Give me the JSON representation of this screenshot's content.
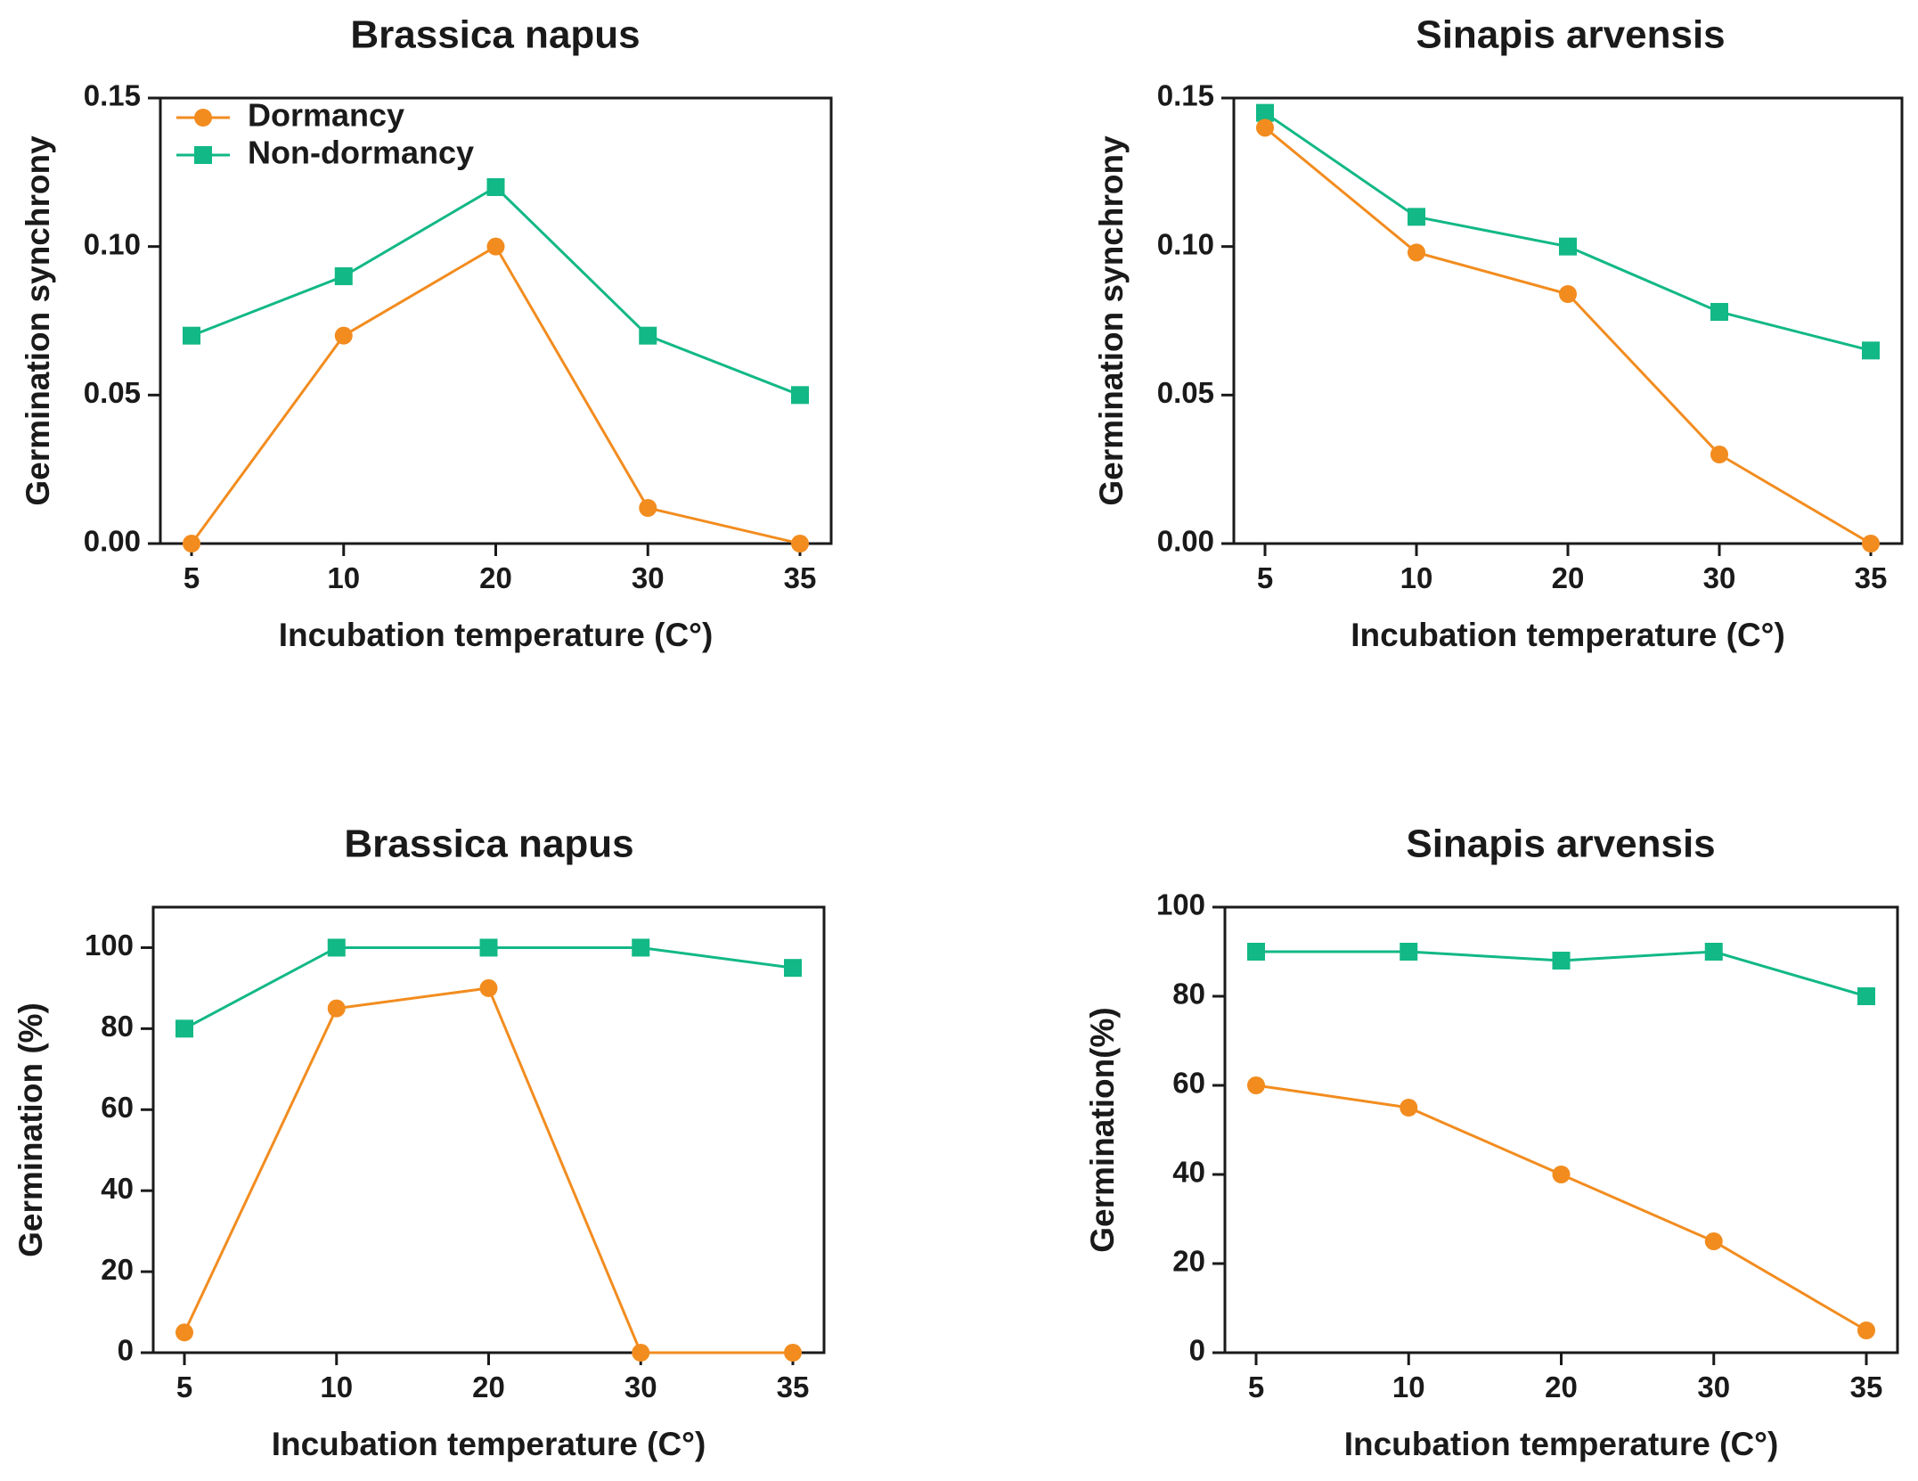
{
  "colors": {
    "dormancy": "#f28c1f",
    "non_dormancy": "#12b886",
    "axis": "#1a1a1a"
  },
  "chart_data": [
    {
      "type": "line",
      "title": "Brassica napus",
      "xlabel": "Incubation temperature (C°)",
      "ylabel": "Germination synchrony",
      "categories": [
        "5",
        "10",
        "20",
        "30",
        "35"
      ],
      "yticks": [
        "0.00",
        "0.05",
        "0.10",
        "0.15"
      ],
      "ylim": [
        0,
        0.15
      ],
      "legend": {
        "show": true,
        "placement": "top-left"
      },
      "series": [
        {
          "name": "Dormancy",
          "marker": "circle",
          "values": [
            0.0,
            0.07,
            0.1,
            0.012,
            0.0
          ]
        },
        {
          "name": "Non-dormancy",
          "marker": "square",
          "values": [
            0.07,
            0.09,
            0.12,
            0.07,
            0.05
          ]
        }
      ]
    },
    {
      "type": "line",
      "title": "Sinapis arvensis",
      "xlabel": "Incubation temperature (C°)",
      "ylabel": "Germination synchrony",
      "categories": [
        "5",
        "10",
        "20",
        "30",
        "35"
      ],
      "yticks": [
        "0.00",
        "0.05",
        "0.10",
        "0.15"
      ],
      "ylim": [
        0,
        0.15
      ],
      "legend": {
        "show": false
      },
      "series": [
        {
          "name": "Dormancy",
          "marker": "circle",
          "values": [
            0.14,
            0.098,
            0.084,
            0.03,
            0.0
          ]
        },
        {
          "name": "Non-dormancy",
          "marker": "square",
          "values": [
            0.145,
            0.11,
            0.1,
            0.078,
            0.065
          ]
        }
      ]
    },
    {
      "type": "line",
      "title": "Brassica napus",
      "xlabel": "Incubation temperature (C°)",
      "ylabel": "Germination (%)",
      "categories": [
        "5",
        "10",
        "20",
        "30",
        "35"
      ],
      "yticks": [
        "0",
        "20",
        "40",
        "60",
        "80",
        "100"
      ],
      "ylim": [
        0,
        110
      ],
      "legend": {
        "show": false
      },
      "series": [
        {
          "name": "Dormancy",
          "marker": "circle",
          "values": [
            5,
            85,
            90,
            0,
            0
          ]
        },
        {
          "name": "Non-dormancy",
          "marker": "square",
          "values": [
            80,
            100,
            100,
            100,
            95
          ]
        }
      ]
    },
    {
      "type": "line",
      "title": "Sinapis arvensis",
      "xlabel": "Incubation temperature (C°)",
      "ylabel": "Germination(%)",
      "categories": [
        "5",
        "10",
        "20",
        "30",
        "35"
      ],
      "yticks": [
        "0",
        "20",
        "40",
        "60",
        "80",
        "100"
      ],
      "ylim": [
        0,
        100
      ],
      "legend": {
        "show": false
      },
      "series": [
        {
          "name": "Dormancy",
          "marker": "circle",
          "values": [
            60,
            55,
            40,
            25,
            5
          ]
        },
        {
          "name": "Non-dormancy",
          "marker": "square",
          "values": [
            90,
            90,
            88,
            90,
            80
          ]
        }
      ]
    }
  ]
}
